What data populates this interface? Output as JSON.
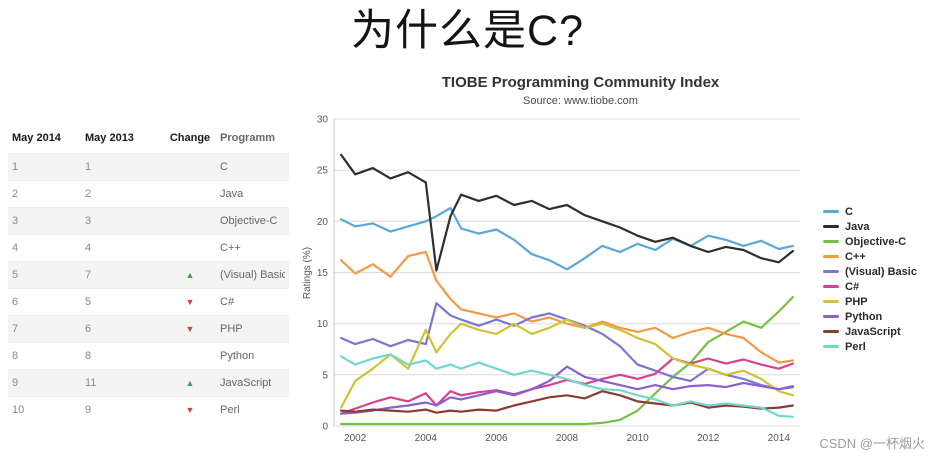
{
  "slide": {
    "title": "为什么是C?"
  },
  "watermark": "CSDN @一杯烟火",
  "table": {
    "headers": [
      "May 2014",
      "May 2013",
      "Change",
      "Programm"
    ],
    "rows": [
      {
        "pos2014": "1",
        "pos2013": "1",
        "change": "none",
        "language": "C"
      },
      {
        "pos2014": "2",
        "pos2013": "2",
        "change": "none",
        "language": "Java"
      },
      {
        "pos2014": "3",
        "pos2013": "3",
        "change": "none",
        "language": "Objective-C"
      },
      {
        "pos2014": "4",
        "pos2013": "4",
        "change": "none",
        "language": "C++"
      },
      {
        "pos2014": "5",
        "pos2013": "7",
        "change": "up",
        "language": "(Visual) Basic"
      },
      {
        "pos2014": "6",
        "pos2013": "5",
        "change": "down",
        "language": "C#"
      },
      {
        "pos2014": "7",
        "pos2013": "6",
        "change": "down",
        "language": "PHP"
      },
      {
        "pos2014": "8",
        "pos2013": "8",
        "change": "none",
        "language": "Python"
      },
      {
        "pos2014": "9",
        "pos2013": "11",
        "change": "up",
        "language": "JavaScript"
      },
      {
        "pos2014": "10",
        "pos2013": "9",
        "change": "down",
        "language": "Perl"
      }
    ],
    "up_color": "#43a047",
    "down_color": "#cf4436"
  },
  "chart_data": {
    "type": "line",
    "title": "TIOBE Programming Community Index",
    "subtitle": "Source: www.tiobe.com",
    "xlabel": "",
    "ylabel": "Ratings (%)",
    "ylim": [
      0,
      30
    ],
    "yticks": [
      0,
      5,
      10,
      15,
      20,
      25,
      30
    ],
    "xlim": [
      2001.4,
      2014.6
    ],
    "xticks": [
      2002,
      2004,
      2006,
      2008,
      2010,
      2012,
      2014
    ],
    "grid": true,
    "legend_position": "right",
    "x": [
      2001.6,
      2002,
      2002.5,
      2003,
      2003.5,
      2004,
      2004.3,
      2004.7,
      2005,
      2005.5,
      2006,
      2006.5,
      2007,
      2007.5,
      2008,
      2008.5,
      2009,
      2009.5,
      2010,
      2010.5,
      2011,
      2011.5,
      2012,
      2012.5,
      2013,
      2013.5,
      2014,
      2014.4
    ],
    "series": [
      {
        "name": "C",
        "color": "#5ba7db",
        "values": [
          20.2,
          19.5,
          19.8,
          19.0,
          19.5,
          20.0,
          20.5,
          21.3,
          19.3,
          18.8,
          19.2,
          18.2,
          16.8,
          16.2,
          15.3,
          16.4,
          17.6,
          17.0,
          17.8,
          17.2,
          18.3,
          17.6,
          18.6,
          18.2,
          17.6,
          18.1,
          17.3,
          17.6
        ]
      },
      {
        "name": "Java",
        "color": "#2e2e2e",
        "values": [
          26.5,
          24.6,
          25.2,
          24.2,
          24.8,
          23.8,
          15.2,
          20.5,
          22.6,
          22.0,
          22.5,
          21.6,
          22.0,
          21.2,
          21.6,
          20.6,
          20.0,
          19.4,
          18.6,
          18.0,
          18.4,
          17.6,
          17.0,
          17.5,
          17.2,
          16.4,
          16.0,
          17.1
        ]
      },
      {
        "name": "Objective-C",
        "color": "#77c043",
        "values": [
          0.2,
          0.2,
          0.2,
          0.2,
          0.2,
          0.2,
          0.2,
          0.2,
          0.2,
          0.2,
          0.2,
          0.2,
          0.2,
          0.2,
          0.2,
          0.2,
          0.3,
          0.6,
          1.5,
          3.2,
          4.8,
          6.2,
          8.2,
          9.2,
          10.2,
          9.6,
          11.2,
          12.6
        ]
      },
      {
        "name": "C++",
        "color": "#f29a4a",
        "values": [
          16.2,
          14.9,
          15.8,
          14.6,
          16.6,
          17.0,
          14.2,
          12.4,
          11.4,
          11.0,
          10.6,
          11.0,
          10.2,
          10.6,
          10.0,
          9.6,
          10.2,
          9.6,
          9.2,
          9.6,
          8.6,
          9.2,
          9.6,
          9.0,
          8.6,
          7.2,
          6.2,
          6.4
        ]
      },
      {
        "name": "(Visual) Basic",
        "color": "#7977d6",
        "values": [
          8.6,
          8.0,
          8.5,
          7.8,
          8.4,
          8.0,
          12.0,
          10.8,
          10.4,
          9.8,
          10.4,
          9.8,
          10.6,
          11.0,
          10.4,
          9.8,
          9.0,
          7.8,
          6.0,
          5.4,
          4.8,
          4.4,
          5.6,
          5.0,
          4.6,
          4.0,
          3.6,
          3.9
        ]
      },
      {
        "name": "C#",
        "color": "#d8418c",
        "values": [
          1.2,
          1.7,
          2.3,
          2.8,
          2.4,
          3.2,
          2.0,
          3.4,
          3.0,
          3.3,
          3.5,
          3.1,
          3.6,
          4.0,
          4.5,
          4.1,
          4.6,
          5.0,
          4.6,
          5.1,
          6.6,
          6.1,
          6.6,
          6.1,
          6.5,
          6.0,
          5.6,
          6.1
        ]
      },
      {
        "name": "PHP",
        "color": "#cfc234",
        "values": [
          1.8,
          4.4,
          5.6,
          7.0,
          5.6,
          9.4,
          7.2,
          9.0,
          10.0,
          9.4,
          9.0,
          10.0,
          9.0,
          9.6,
          10.4,
          9.6,
          10.0,
          9.4,
          8.6,
          8.0,
          6.6,
          6.0,
          5.6,
          5.0,
          5.4,
          4.6,
          3.4,
          3.0
        ]
      },
      {
        "name": "Python",
        "color": "#8a5fd0",
        "values": [
          1.2,
          1.3,
          1.5,
          1.8,
          2.0,
          2.3,
          2.0,
          2.8,
          2.6,
          3.0,
          3.4,
          3.0,
          3.6,
          4.4,
          5.8,
          4.8,
          4.4,
          4.0,
          3.6,
          4.0,
          3.6,
          3.9,
          4.0,
          3.8,
          4.2,
          3.9,
          3.6,
          3.8
        ]
      },
      {
        "name": "JavaScript",
        "color": "#8c3b31",
        "values": [
          1.5,
          1.4,
          1.6,
          1.5,
          1.4,
          1.6,
          1.3,
          1.5,
          1.4,
          1.6,
          1.5,
          2.0,
          2.4,
          2.8,
          3.0,
          2.7,
          3.4,
          3.0,
          2.4,
          2.2,
          2.0,
          2.3,
          1.8,
          2.0,
          1.9,
          1.7,
          1.8,
          2.0
        ]
      },
      {
        "name": "Perl",
        "color": "#72d8cd",
        "values": [
          6.8,
          6.0,
          6.6,
          7.0,
          6.0,
          6.4,
          5.6,
          6.0,
          5.6,
          6.2,
          5.6,
          5.0,
          5.4,
          5.0,
          4.6,
          4.0,
          3.6,
          3.5,
          3.0,
          2.6,
          2.0,
          2.4,
          2.0,
          2.2,
          2.0,
          1.8,
          1.0,
          0.9
        ]
      }
    ]
  }
}
